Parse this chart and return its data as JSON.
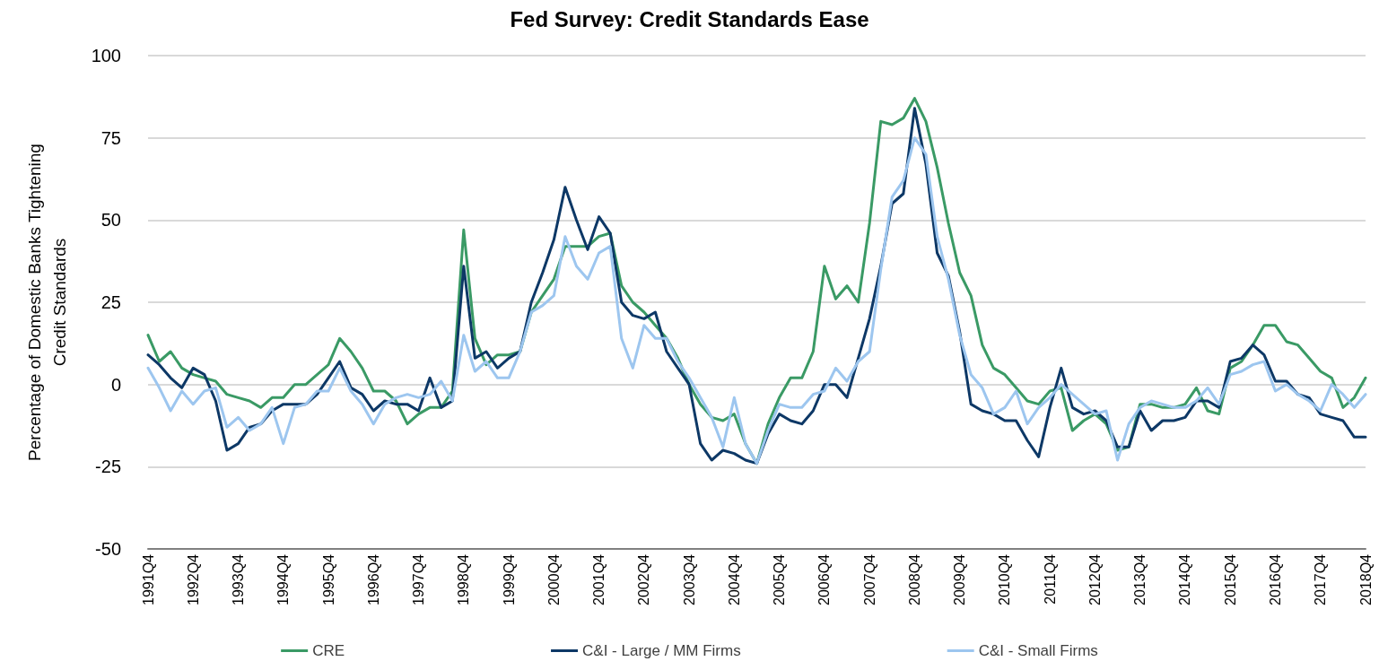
{
  "chart_data": {
    "type": "line",
    "title": "Fed Survey: Credit Standards Ease",
    "ylabel": "Percentage of Domestic Banks Tightening Credit Standards",
    "categories": [
      "1991Q4",
      null,
      null,
      null,
      "1992Q4",
      null,
      null,
      null,
      "1993Q4",
      null,
      null,
      null,
      "1994Q4",
      null,
      null,
      null,
      "1995Q4",
      null,
      null,
      null,
      "1996Q4",
      null,
      null,
      null,
      "1997Q4",
      null,
      null,
      null,
      "1998Q4",
      null,
      null,
      null,
      "1999Q4",
      null,
      null,
      null,
      "2000Q4",
      null,
      null,
      null,
      "2001Q4",
      null,
      null,
      null,
      "2002Q4",
      null,
      null,
      null,
      "2003Q4",
      null,
      null,
      null,
      "2004Q4",
      null,
      null,
      null,
      "2005Q4",
      null,
      null,
      null,
      "2006Q4",
      null,
      null,
      null,
      "2007Q4",
      null,
      null,
      null,
      "2008Q4",
      null,
      null,
      null,
      "2009Q4",
      null,
      null,
      null,
      "2010Q4",
      null,
      null,
      null,
      "2011Q4",
      null,
      null,
      null,
      "2012Q4",
      null,
      null,
      null,
      "2013Q4",
      null,
      null,
      null,
      "2014Q4",
      null,
      null,
      null,
      "2015Q4",
      null,
      null,
      null,
      "2016Q4",
      null,
      null,
      null,
      "2017Q4",
      null,
      null,
      null,
      "2018Q4"
    ],
    "series": [
      {
        "name": "CRE",
        "color": "#3a9a65",
        "values": [
          15,
          7,
          10,
          5,
          3,
          2,
          1,
          -3,
          -4,
          -5,
          -7,
          -4,
          -4,
          0,
          0,
          3,
          6,
          14,
          10,
          5,
          -2,
          -2,
          -5,
          -12,
          -9,
          -7,
          -7,
          -2,
          47,
          14,
          6,
          9,
          9,
          10,
          22,
          27,
          32,
          42,
          42,
          42,
          45,
          46,
          30,
          25,
          22,
          18,
          14,
          8,
          0,
          -6,
          -10,
          -11,
          -9,
          -18,
          -24,
          -12,
          -4,
          2,
          2,
          10,
          36,
          26,
          30,
          25,
          49,
          80,
          79,
          81,
          87,
          80,
          66,
          49,
          34,
          27,
          12,
          5,
          3,
          -1,
          -5,
          -6,
          -2,
          -1,
          -14,
          -11,
          -9,
          -12,
          -20,
          -19,
          -6,
          -6,
          -7,
          -7,
          -6,
          -1,
          -8,
          -9,
          5,
          7,
          12,
          18,
          18,
          13,
          12,
          8,
          4,
          2,
          -7,
          -4,
          2
        ]
      },
      {
        "name": "C&I - Large / MM Firms",
        "color": "#0d3866",
        "values": [
          9,
          6,
          2,
          -1,
          5,
          3,
          -5,
          -20,
          -18,
          -13,
          -12,
          -8,
          -6,
          -6,
          -6,
          -3,
          2,
          7,
          -1,
          -3,
          -8,
          -5,
          -6,
          -6,
          -8,
          2,
          -7,
          -5,
          36,
          8,
          10,
          5,
          8,
          10,
          25,
          34,
          44,
          60,
          50,
          41,
          51,
          46,
          25,
          21,
          20,
          22,
          10,
          5,
          0,
          -18,
          -23,
          -20,
          -21,
          -23,
          -24,
          -15,
          -9,
          -11,
          -12,
          -8,
          0,
          0,
          -4,
          8,
          20,
          36,
          55,
          58,
          84,
          67,
          40,
          33,
          16,
          -6,
          -8,
          -9,
          -11,
          -11,
          -17,
          -22,
          -7,
          5,
          -7,
          -9,
          -8,
          -11,
          -19,
          -19,
          -8,
          -14,
          -11,
          -11,
          -10,
          -5,
          -5,
          -7,
          7,
          8,
          12,
          9,
          1,
          1,
          -3,
          -4,
          -9,
          -10,
          -11,
          -16,
          -16
        ]
      },
      {
        "name": "C&I - Small Firms",
        "color": "#9dc6ef",
        "values": [
          5,
          -1,
          -8,
          -2,
          -6,
          -2,
          -1,
          -13,
          -10,
          -14,
          -12,
          -7,
          -18,
          -7,
          -6,
          -2,
          -2,
          5,
          -2,
          -6,
          -12,
          -6,
          -4,
          -3,
          -4,
          -3,
          1,
          -5,
          15,
          4,
          7,
          2,
          2,
          10,
          22,
          24,
          27,
          45,
          36,
          32,
          40,
          42,
          14,
          5,
          18,
          14,
          14,
          7,
          2,
          -4,
          -10,
          -19,
          -4,
          -18,
          -24,
          -14,
          -6,
          -7,
          -7,
          -3,
          -2,
          5,
          1,
          7,
          10,
          35,
          57,
          62,
          75,
          70,
          45,
          32,
          15,
          3,
          -1,
          -9,
          -7,
          -2,
          -12,
          -7,
          -4,
          0,
          -3,
          -6,
          -9,
          -8,
          -23,
          -12,
          -7,
          -5,
          -6,
          -7,
          -7,
          -5,
          -1,
          -6,
          3,
          4,
          6,
          7,
          -2,
          0,
          -3,
          -5,
          -8,
          0,
          -3,
          -7,
          -3
        ]
      }
    ],
    "ylim": [
      -50,
      100
    ],
    "yticks": [
      -50,
      -25,
      0,
      25,
      50,
      75,
      100
    ],
    "grid": "y",
    "legend": "bottom",
    "marker": "none",
    "line_style": "solid"
  }
}
